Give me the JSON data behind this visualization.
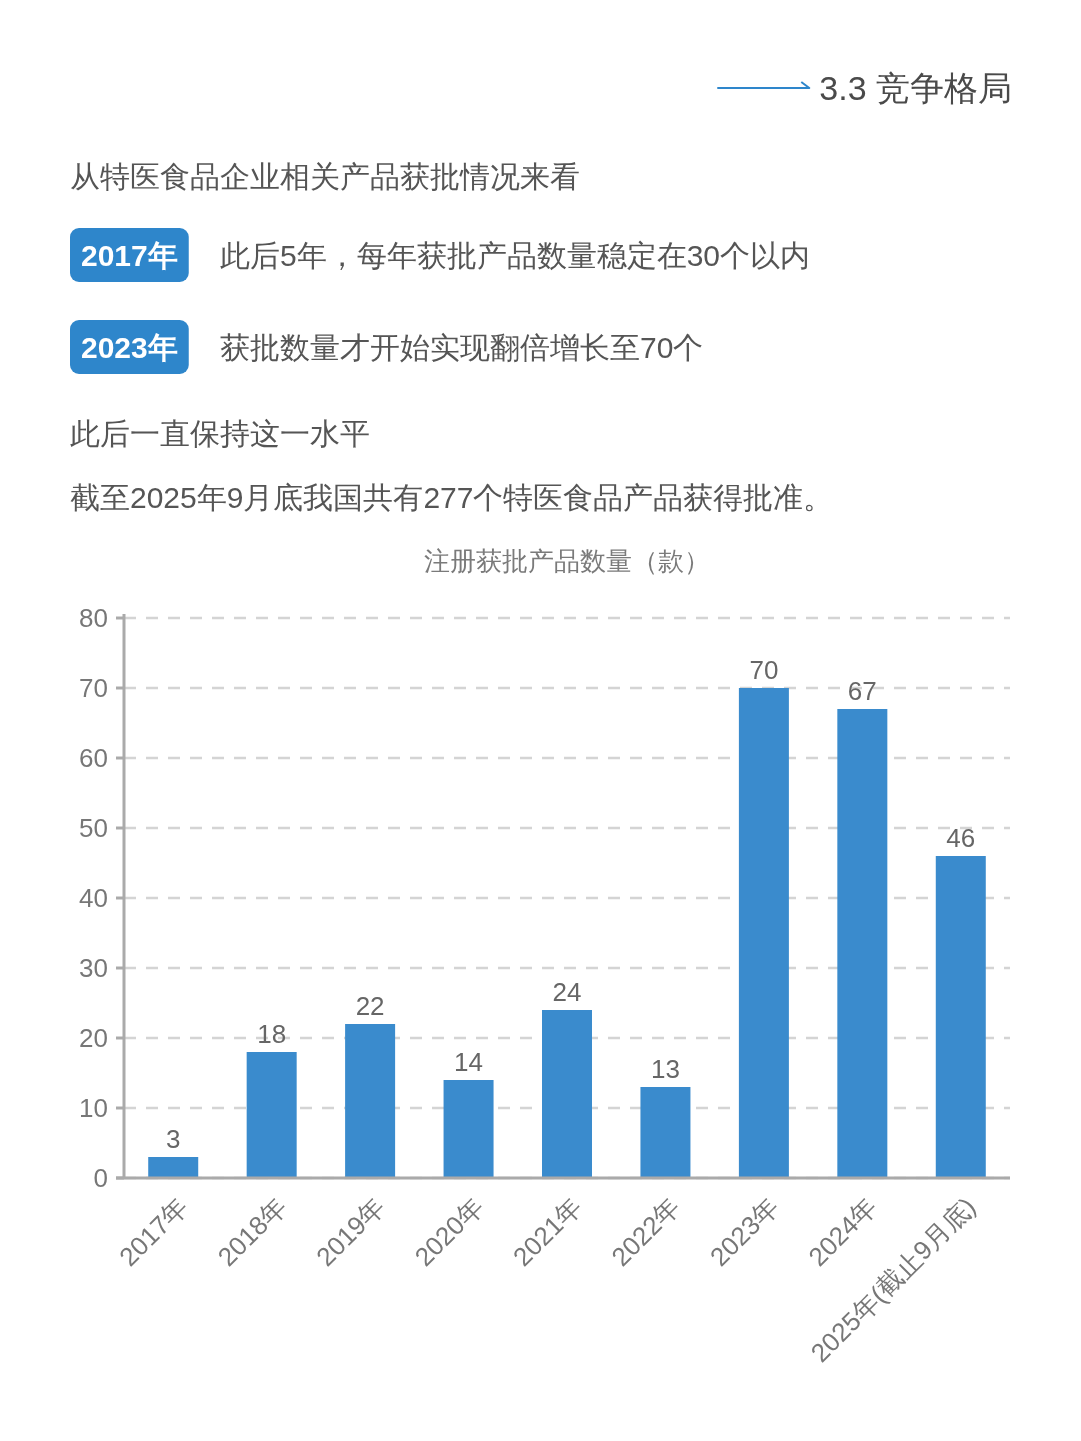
{
  "chart_data": {
    "type": "bar",
    "title": "注册获批产品数量（款）",
    "annotations": [
      "3.3 竞争格局",
      "从特医食品企业相关产品获批情况来看",
      "2017年",
      "此后5年，每年获批产品数量稳定在30个以内",
      "2023年",
      "获批数量才开始实现翻倍增长至70个",
      "此后一直保持这一水平",
      "截至2025年9月底我国共有277个特医食品产品获得批准。"
    ],
    "categories": [
      "2017年",
      "2018年",
      "2019年",
      "2020年",
      "2021年",
      "2022年",
      "2023年",
      "2024年",
      "2025年(截止9月底)"
    ],
    "values": [
      3,
      18,
      22,
      14,
      24,
      13,
      70,
      67,
      46
    ],
    "color": "#3a8bcd",
    "ylim": [
      0,
      80
    ],
    "yticks": [
      0,
      10,
      20,
      30,
      40,
      50,
      60,
      70,
      80
    ],
    "grid": "y",
    "data_labels": true
  }
}
